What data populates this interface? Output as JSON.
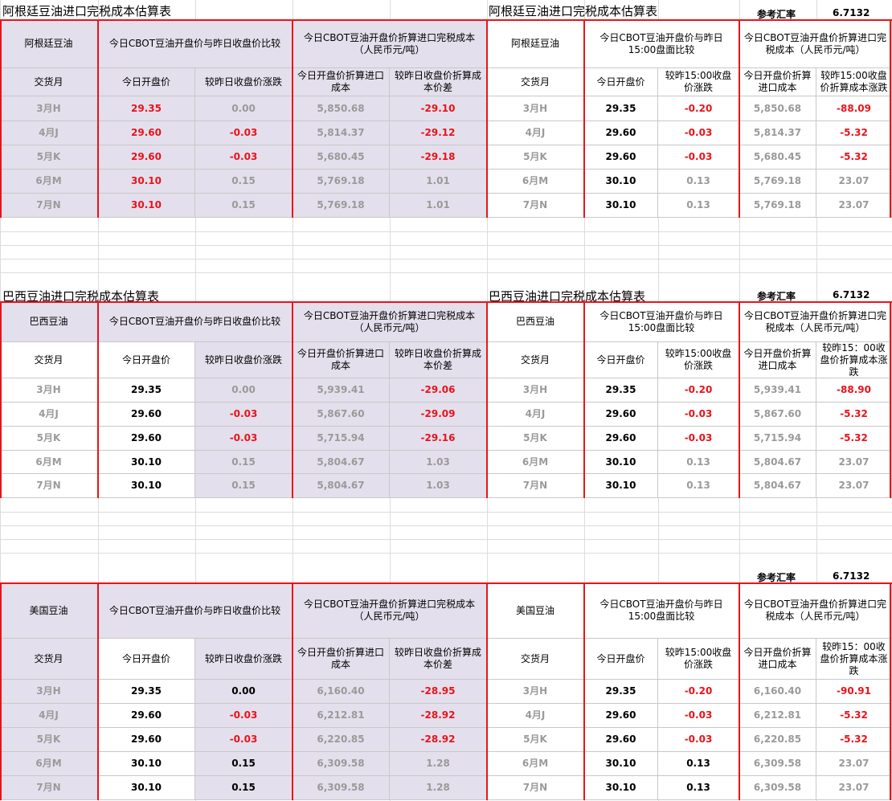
{
  "sections": [
    {
      "title_left": "阿根廷豆油进口完税成本估算表",
      "title_right": "阿根廷豆油进口完税成本估算表",
      "rate_label": "参考汇率",
      "rate": "6.7132",
      "left_header": [
        "阿根廷豆油",
        "今日CBOT豆油开盘价与昨日收盘价比较",
        "今日CBOT豆油开盘价折算进口完税成本（人民币元/吨）"
      ],
      "left_subheader": [
        "交货月",
        "今日开盘价",
        "较昨日收盘价涨跌",
        "今日开盘价折算进口成本",
        "较昨日收盘价折算成本价差"
      ],
      "right_header": [
        "阿根廷豆油",
        "今日CBOT豆油开盘价与昨日15:00盘面比较",
        "今日CBOT豆油开盘价折算进口完税成本（人民币元/吨）"
      ],
      "right_subheader": [
        "交货月",
        "今日开盘价",
        "较昨15:00收盘价涨跌",
        "今日开盘价折算进口成本",
        "较昨15:00收盘价折算成本涨跌"
      ],
      "left_rows": [
        [
          "3月H",
          "29.35",
          "0.00",
          "5,850.68",
          "-29.10"
        ],
        [
          "4月J",
          "29.60",
          "-0.03",
          "5,814.37",
          "-29.12"
        ],
        [
          "5月K",
          "29.60",
          "-0.03",
          "5,680.45",
          "-29.18"
        ],
        [
          "6月M",
          "30.10",
          "0.15",
          "5,769.18",
          "1.01"
        ],
        [
          "7月N",
          "30.10",
          "0.15",
          "5,769.18",
          "1.01"
        ]
      ],
      "right_rows": [
        [
          "3月H",
          "29.35",
          "-0.20",
          "5,850.68",
          "-88.09"
        ],
        [
          "4月J",
          "29.60",
          "-0.03",
          "5,814.37",
          "-5.32"
        ],
        [
          "5月K",
          "29.60",
          "-0.03",
          "5,680.45",
          "-5.32"
        ],
        [
          "6月M",
          "30.10",
          "0.13",
          "5,769.18",
          "23.07"
        ],
        [
          "7月N",
          "30.10",
          "0.13",
          "5,769.18",
          "23.07"
        ]
      ]
    },
    {
      "title_left": "巴西豆油进口完税成本估算表",
      "title_right": "巴西豆油进口完税成本估算表",
      "rate_label": "参考汇率",
      "rate": "6.7132",
      "left_header": [
        "巴西豆油",
        "今日CBOT豆油开盘价与昨日收盘价比较",
        "今日CBOT豆油开盘价折算进口完税成本（人民币元/吨）"
      ],
      "left_subheader": [
        "交货月",
        "今日开盘价",
        "较昨日收盘价涨跌",
        "今日开盘价折算进口成本",
        "较昨日收盘价折算成本价差"
      ],
      "right_header": [
        "巴西豆油",
        "今日CBOT豆油开盘价与昨日15:00盘面比较",
        "今日CBOT豆油开盘价折算进口完税成本（人民币元/吨）"
      ],
      "right_subheader": [
        "交货月",
        "今日开盘价",
        "较昨15:00收盘价涨跌",
        "今日开盘价折算进口成本",
        "较昨15：00收盘价折算成本涨跌"
      ],
      "left_rows": [
        [
          "3月H",
          "29.35",
          "0.00",
          "5,939.41",
          "-29.06"
        ],
        [
          "4月J",
          "29.60",
          "-0.03",
          "5,867.60",
          "-29.09"
        ],
        [
          "5月K",
          "29.60",
          "-0.03",
          "5,715.94",
          "-29.16"
        ],
        [
          "6月M",
          "30.10",
          "0.15",
          "5,804.67",
          "1.03"
        ],
        [
          "7月N",
          "30.10",
          "0.15",
          "5,804.67",
          "1.03"
        ]
      ],
      "right_rows": [
        [
          "3月H",
          "29.35",
          "-0.20",
          "5,939.41",
          "-88.90"
        ],
        [
          "4月J",
          "29.60",
          "-0.03",
          "5,867.60",
          "-5.32"
        ],
        [
          "5月K",
          "29.60",
          "-0.03",
          "5,715.94",
          "-5.32"
        ],
        [
          "6月M",
          "30.10",
          "0.13",
          "5,804.67",
          "23.07"
        ],
        [
          "7月N",
          "30.10",
          "0.13",
          "5,804.67",
          "23.07"
        ]
      ]
    },
    {
      "rate_label": "参考汇率",
      "rate": "6.7132",
      "left_header": [
        "美国豆油",
        "今日CBOT豆油开盘价与昨日收盘价比较",
        "今日CBOT豆油开盘价折算进口完税成本（人民币元/吨）"
      ],
      "left_subheader": [
        "交货月",
        "今日开盘价",
        "较昨日收盘价涨跌",
        "今日开盘价折算进口成本",
        "较昨日收盘价折算成本价差"
      ],
      "right_header": [
        "美国豆油",
        "今日CBOT豆油开盘价与昨日15:00盘面比较",
        "今日CBOT豆油开盘价折算进口完税成本（人民币元/吨）"
      ],
      "right_subheader": [
        "交货月",
        "今日开盘价",
        "较昨15:00收盘价涨跌",
        "今日开盘价折算进口成本",
        "较昨15：00收盘价折算成本涨跌"
      ],
      "left_rows": [
        [
          "3月H",
          "29.35",
          "0.00",
          "6,160.40",
          "-28.95"
        ],
        [
          "4月J",
          "29.60",
          "-0.03",
          "6,212.81",
          "-28.92"
        ],
        [
          "5月K",
          "29.60",
          "-0.03",
          "6,220.85",
          "-28.92"
        ],
        [
          "6月M",
          "30.10",
          "0.15",
          "6,309.58",
          "1.28"
        ],
        [
          "7月N",
          "30.10",
          "0.15",
          "6,309.58",
          "1.28"
        ]
      ],
      "right_rows": [
        [
          "3月H",
          "29.35",
          "-0.20",
          "6,160.40",
          "-90.91"
        ],
        [
          "4月J",
          "29.60",
          "-0.03",
          "6,212.81",
          "-5.32"
        ],
        [
          "5月K",
          "29.60",
          "-0.03",
          "6,220.85",
          "-5.32"
        ],
        [
          "6月M",
          "30.10",
          "0.13",
          "6,309.58",
          "23.07"
        ],
        [
          "7月N",
          "30.10",
          "0.13",
          "6,309.58",
          "23.07"
        ]
      ]
    }
  ]
}
